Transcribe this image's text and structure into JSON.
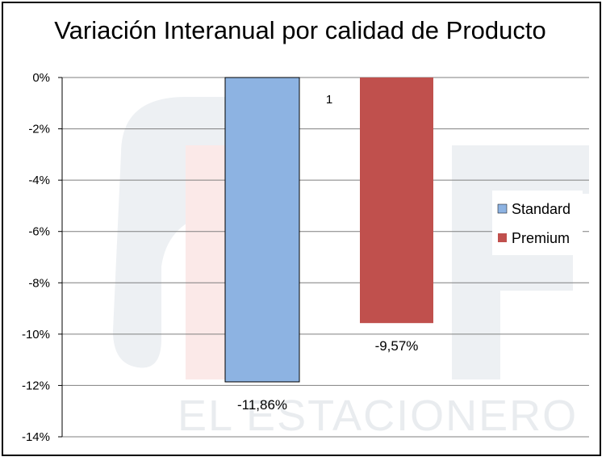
{
  "chart_data": {
    "type": "bar",
    "title": "Variación Interanual por calidad de Producto",
    "categories": [
      "1"
    ],
    "series": [
      {
        "name": "Standard",
        "values": [
          -11.86
        ],
        "label": "-11,86%",
        "color": "#8db3e2"
      },
      {
        "name": "Premium",
        "values": [
          -9.57
        ],
        "label": "-9,57%",
        "color": "#c0504d"
      }
    ],
    "ylim": [
      -14,
      0
    ],
    "yticks": [
      "0%",
      "-2%",
      "-4%",
      "-6%",
      "-8%",
      "-10%",
      "-12%",
      "-14%"
    ],
    "grid": true,
    "legend_position": "right",
    "watermark": "EL ESTACIONERO"
  }
}
